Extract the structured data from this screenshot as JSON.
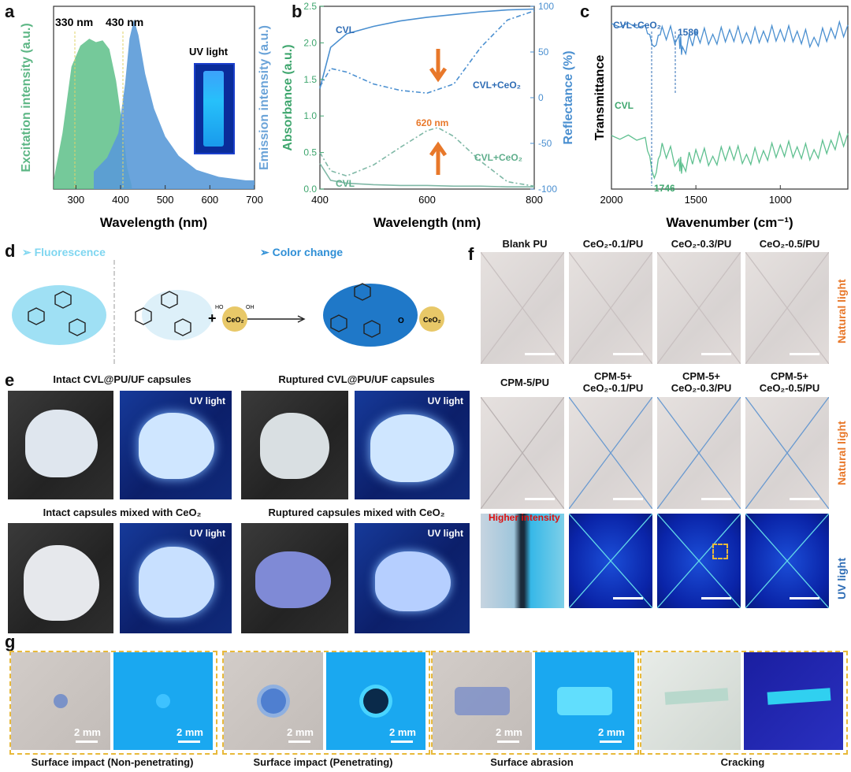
{
  "panels": {
    "a": {
      "label": "a",
      "peak1": "330 nm",
      "peak2": "430 nm",
      "uv": "UV light",
      "ylabel_left": "Excitation intensity (a.u.)",
      "ylabel_right": "Emission intensity (a.u.)",
      "xlabel": "Wavelength (nm)"
    },
    "b": {
      "label": "b",
      "ylabel_left": "Absorbance (a.u.)",
      "ylabel_right": "Reflectance (%)",
      "xlabel": "Wavelength (nm)",
      "cvl_top": "CVL",
      "cvlceo2_top": "CVL+CeO₂",
      "cvl_bot": "CVL",
      "cvlceo2_bot": "CVL+CeO₂",
      "note620": "620 nm"
    },
    "c": {
      "label": "c",
      "ylabel": "Transmittance",
      "xlabel": "Wavenumber (cm⁻¹)",
      "trace_top": "CVL+CeO₂",
      "trace_bot": "CVL",
      "mark1": "1580",
      "mark2": "1746"
    },
    "d": {
      "label": "d",
      "left_title": "➢ Fluorescence",
      "right_title": "➢ Color change",
      "ceo2": "CeO₂",
      "ho": "HO",
      "oh": "OH",
      "plus": "+",
      "o": "O"
    },
    "e": {
      "label": "e",
      "cap1": "Intact CVL@PU/UF capsules",
      "cap2": "Ruptured CVL@PU/UF capsules",
      "cap3": "Intact capsules mixed with CeO₂",
      "cap4": "Ruptured capsules mixed with CeO₂",
      "uv": "UV light"
    },
    "f": {
      "label": "f",
      "row1": [
        "Blank PU",
        "CeO₂-0.1/PU",
        "CeO₂-0.3/PU",
        "CeO₂-0.5/PU"
      ],
      "row2": [
        "CPM-5/PU",
        "CPM-5+\nCeO₂-0.1/PU",
        "CPM-5+\nCeO₂-0.3/PU",
        "CPM-5+\nCeO₂-0.5/PU"
      ],
      "side1": "Natural light",
      "side2": "Natural light",
      "side3": "UV light",
      "higher": "Higher intensity"
    },
    "g": {
      "label": "g",
      "scale": "2 mm",
      "caps": [
        "Surface impact (Non-penetrating)",
        "Surface impact (Penetrating)",
        "Surface abrasion",
        "Cracking"
      ]
    }
  },
  "colors": {
    "green": "#3fa66e",
    "blue": "#4a8fd0",
    "orange": "#e8782a",
    "teal": "#7fb8a6",
    "fluor": "#7fd6f0",
    "darkblue": "#2f6db5"
  },
  "chart_data": [
    {
      "panel": "a",
      "type": "area",
      "xlabel": "Wavelength (nm)",
      "xlim": [
        250,
        700
      ],
      "ylabel": "Excitation intensity (a.u.)",
      "y2label": "Emission intensity (a.u.)",
      "series": [
        {
          "name": "",
          "x": [
            250,
            270,
            290,
            310,
            330,
            345,
            360,
            375,
            390,
            405,
            415,
            425
          ],
          "values": [
            0.05,
            0.32,
            0.7,
            0.82,
            0.86,
            0.84,
            0.85,
            0.8,
            0.62,
            0.35,
            0.12,
            0.02
          ]
        },
        {
          "name": "",
          "x": [
            340,
            370,
            395,
            410,
            420,
            430,
            440,
            455,
            475,
            500,
            530,
            570,
            620,
            680,
            700
          ],
          "values": [
            0.1,
            0.18,
            0.32,
            0.6,
            0.86,
            0.97,
            0.88,
            0.66,
            0.46,
            0.3,
            0.19,
            0.11,
            0.07,
            0.05,
            0.05
          ]
        }
      ],
      "annotations": [
        "330 nm",
        "430 nm",
        "UV light"
      ]
    },
    {
      "panel": "b",
      "type": "line",
      "xlabel": "Wavelength (nm)",
      "xlim": [
        400,
        800
      ],
      "ylabel": "Absorbance (a.u.)",
      "ylim": [
        0.0,
        2.5
      ],
      "y2label": "Reflectance (%)",
      "y2lim": [
        -100,
        100
      ],
      "series": [
        {
          "name": "CVL",
          "axis": "right",
          "x": [
            400,
            420,
            450,
            500,
            550,
            600,
            650,
            700,
            750,
            800
          ],
          "values": [
            10,
            55,
            70,
            78,
            84,
            88,
            91,
            94,
            96,
            97
          ]
        },
        {
          "name": "CVL+CeO₂",
          "axis": "right",
          "x": [
            400,
            420,
            450,
            500,
            550,
            600,
            650,
            700,
            750,
            800
          ],
          "values": [
            12,
            32,
            28,
            15,
            8,
            5,
            15,
            55,
            85,
            95
          ]
        },
        {
          "name": "CVL+CeO₂",
          "axis": "left",
          "x": [
            400,
            420,
            450,
            500,
            550,
            600,
            620,
            650,
            700,
            750,
            800
          ],
          "values": [
            0.5,
            0.25,
            0.18,
            0.33,
            0.57,
            0.8,
            0.84,
            0.72,
            0.38,
            0.1,
            0.04
          ]
        },
        {
          "name": "CVL",
          "axis": "left",
          "x": [
            400,
            420,
            450,
            500,
            550,
            600,
            650,
            700,
            750,
            800
          ],
          "values": [
            0.35,
            0.12,
            0.08,
            0.06,
            0.05,
            0.05,
            0.04,
            0.04,
            0.03,
            0.03
          ]
        }
      ],
      "annotations": [
        "620 nm"
      ]
    },
    {
      "panel": "c",
      "type": "line",
      "xlabel": "Wavenumber (cm⁻¹)",
      "xlim": [
        2000,
        600
      ],
      "ylabel": "Transmittance",
      "series": [
        {
          "name": "CVL+CeO₂",
          "x": [
            2000,
            1800,
            1746,
            1700,
            1600,
            1580,
            1500,
            1400,
            1300,
            1200,
            1100,
            1000,
            900,
            800,
            700,
            600
          ],
          "values": [
            0.9,
            0.88,
            0.6,
            0.86,
            0.75,
            0.6,
            0.8,
            0.76,
            0.82,
            0.78,
            0.8,
            0.82,
            0.8,
            0.72,
            0.84,
            0.88
          ]
        },
        {
          "name": "CVL",
          "x": [
            2000,
            1800,
            1746,
            1700,
            1600,
            1580,
            1500,
            1400,
            1300,
            1200,
            1100,
            1000,
            900,
            800,
            700,
            600
          ],
          "values": [
            0.5,
            0.48,
            0.05,
            0.42,
            0.25,
            0.2,
            0.35,
            0.28,
            0.38,
            0.3,
            0.34,
            0.4,
            0.38,
            0.35,
            0.45,
            0.52
          ]
        }
      ],
      "annotations": [
        "1580",
        "1746"
      ]
    }
  ]
}
